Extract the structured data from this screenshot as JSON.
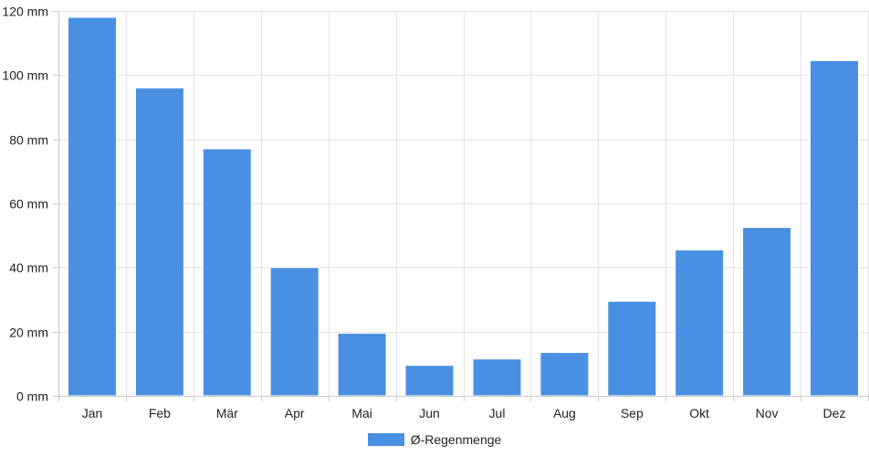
{
  "chart_data": {
    "type": "bar",
    "categories": [
      "Jan",
      "Feb",
      "Mär",
      "Apr",
      "Mai",
      "Jun",
      "Jul",
      "Aug",
      "Sep",
      "Okt",
      "Nov",
      "Dez"
    ],
    "series": [
      {
        "name": "Ø-Regenmenge",
        "values": [
          118,
          96,
          77,
          40,
          19.5,
          9.5,
          11.5,
          13.5,
          29.5,
          45.5,
          52.5,
          104.5
        ],
        "color": "#4a90e2"
      }
    ],
    "ylim": [
      0,
      120
    ],
    "yticks": [
      0,
      20,
      40,
      60,
      80,
      100,
      120
    ],
    "ytick_labels": [
      "0 mm",
      "20 mm",
      "40 mm",
      "60 mm",
      "80 mm",
      "100 mm",
      "120 mm"
    ],
    "grid": true,
    "legend_position": "bottom-center"
  },
  "legend": {
    "label": "Ø-Regenmenge",
    "color": "#4a90e2"
  }
}
